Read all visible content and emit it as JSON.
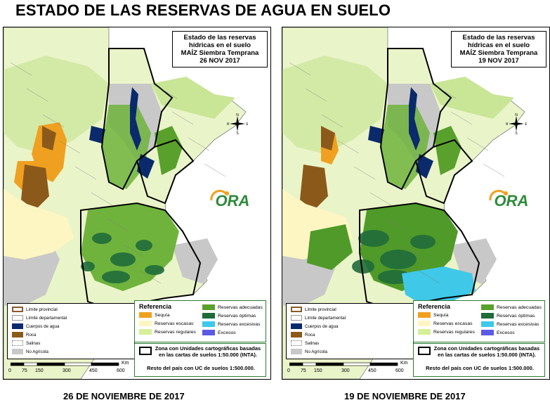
{
  "title": "ESTADO DE LAS RESERVAS DE AGUA EN SUELO",
  "panels": [
    {
      "box": [
        "Estado de las reservas",
        "hídricas en el suelo",
        "MAÍZ Siembra Temprana",
        "26 NOV 2017"
      ],
      "date_caption": "26 DE NOVIEMBRE DE 2017"
    },
    {
      "box": [
        "Estado de las reservas",
        "hídricas en el suelo",
        "MAÍZ Siembra Temprana",
        "19 NOV 2017"
      ],
      "date_caption": "19 DE NOVIEMBRE DE 2017"
    }
  ],
  "legend_left": [
    {
      "label": "Límite provincial",
      "color": "#ffffff",
      "stroke": "#8b5a2b",
      "icon": "line-provincial"
    },
    {
      "label": "Límite departamental",
      "color": "#ffffff",
      "stroke": "#999999",
      "icon": "line-departamental"
    },
    {
      "label": "Cuerpos de agua",
      "color": "#0a2a6b",
      "icon": "fill"
    },
    {
      "label": "Roca",
      "color": "#8b5a1a",
      "icon": "fill"
    },
    {
      "label": "Salinas",
      "color": "#ffffff",
      "stroke": "#777777",
      "icon": "dotted"
    },
    {
      "label": "No Agrícola",
      "color": "#c8c8c8",
      "icon": "fill"
    }
  ],
  "referencia": {
    "title": "Referencia",
    "items": [
      {
        "label": "Sequía",
        "color": "#f0a020"
      },
      {
        "label": "Reservas escasas",
        "color": "#fdf6c3"
      },
      {
        "label": "Reservas regulares",
        "color": "#d6ef9a"
      },
      {
        "label": "Reservas adecuadas",
        "color": "#5aa02c"
      },
      {
        "label": "Reservas óptimas",
        "color": "#1f6b3a"
      },
      {
        "label": "Reservas excesivas",
        "color": "#3fc8e8"
      },
      {
        "label": "Excesos",
        "color": "#5a5ae6"
      }
    ]
  },
  "zona": {
    "text": "Zona con Unidades cartográficas basadas en las cartas de suelos 1:50.000 (INTA).",
    "resto": "Resto del país con UC de suelos 1:500.000."
  },
  "scale": {
    "unit": "Km",
    "ticks": [
      "0",
      "75",
      "150",
      "300",
      "450",
      "600"
    ]
  },
  "logo_text": "ORA",
  "compass_letters": [
    "N",
    "S",
    "E",
    "W"
  ]
}
